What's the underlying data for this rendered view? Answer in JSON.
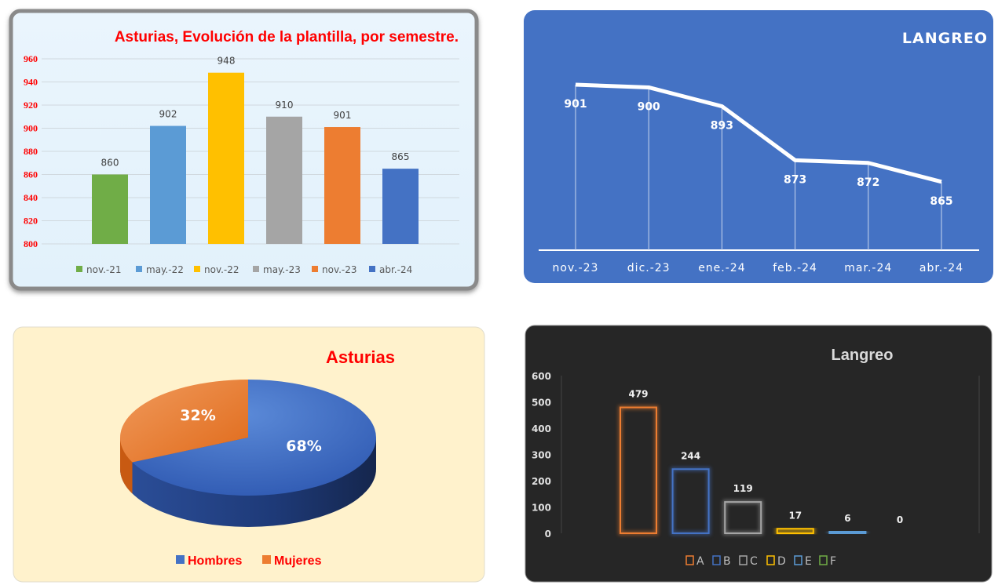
{
  "chart_data": [
    {
      "type": "bar",
      "title": "Asturias, Evolución de la plantilla, por semestre.",
      "categories": [
        "nov.-21",
        "may.-22",
        "nov.-22",
        "may.-23",
        "nov.-23",
        "abr.-24"
      ],
      "values": [
        860,
        902,
        948,
        910,
        901,
        865
      ],
      "colors": [
        "#70AD47",
        "#5B9BD5",
        "#FFC000",
        "#A5A5A5",
        "#ED7D31",
        "#4472C4"
      ],
      "yticks": [
        800,
        820,
        840,
        860,
        880,
        900,
        920,
        940,
        960
      ],
      "ylim": [
        800,
        960
      ],
      "grid": true,
      "legend": "bottom"
    },
    {
      "type": "line",
      "title": "LANGREO",
      "categories": [
        "nov.-23",
        "dic.-23",
        "ene.-24",
        "feb.-24",
        "mar.-24",
        "abr.-24"
      ],
      "values": [
        901,
        900,
        893,
        873,
        872,
        865
      ]
    },
    {
      "type": "pie",
      "title": "Asturias",
      "labels": [
        "Hombres",
        "Mujeres"
      ],
      "values": [
        68,
        32
      ],
      "value_labels": [
        "68%",
        "32%"
      ],
      "colors": [
        "#4472C4",
        "#ED7D31"
      ],
      "legend": "bottom"
    },
    {
      "type": "bar",
      "title": "Langreo",
      "categories": [
        "A",
        "B",
        "C",
        "D",
        "E",
        "F"
      ],
      "values": [
        479,
        244,
        119,
        17,
        6,
        0
      ],
      "colors": [
        "#ED7D31",
        "#4472C4",
        "#A5A5A5",
        "#FFC000",
        "#5B9BD5",
        "#70AD47"
      ],
      "yticks": [
        0,
        100,
        200,
        300,
        400,
        500,
        600
      ],
      "ylim": [
        0,
        600
      ],
      "legend": "bottom"
    }
  ]
}
